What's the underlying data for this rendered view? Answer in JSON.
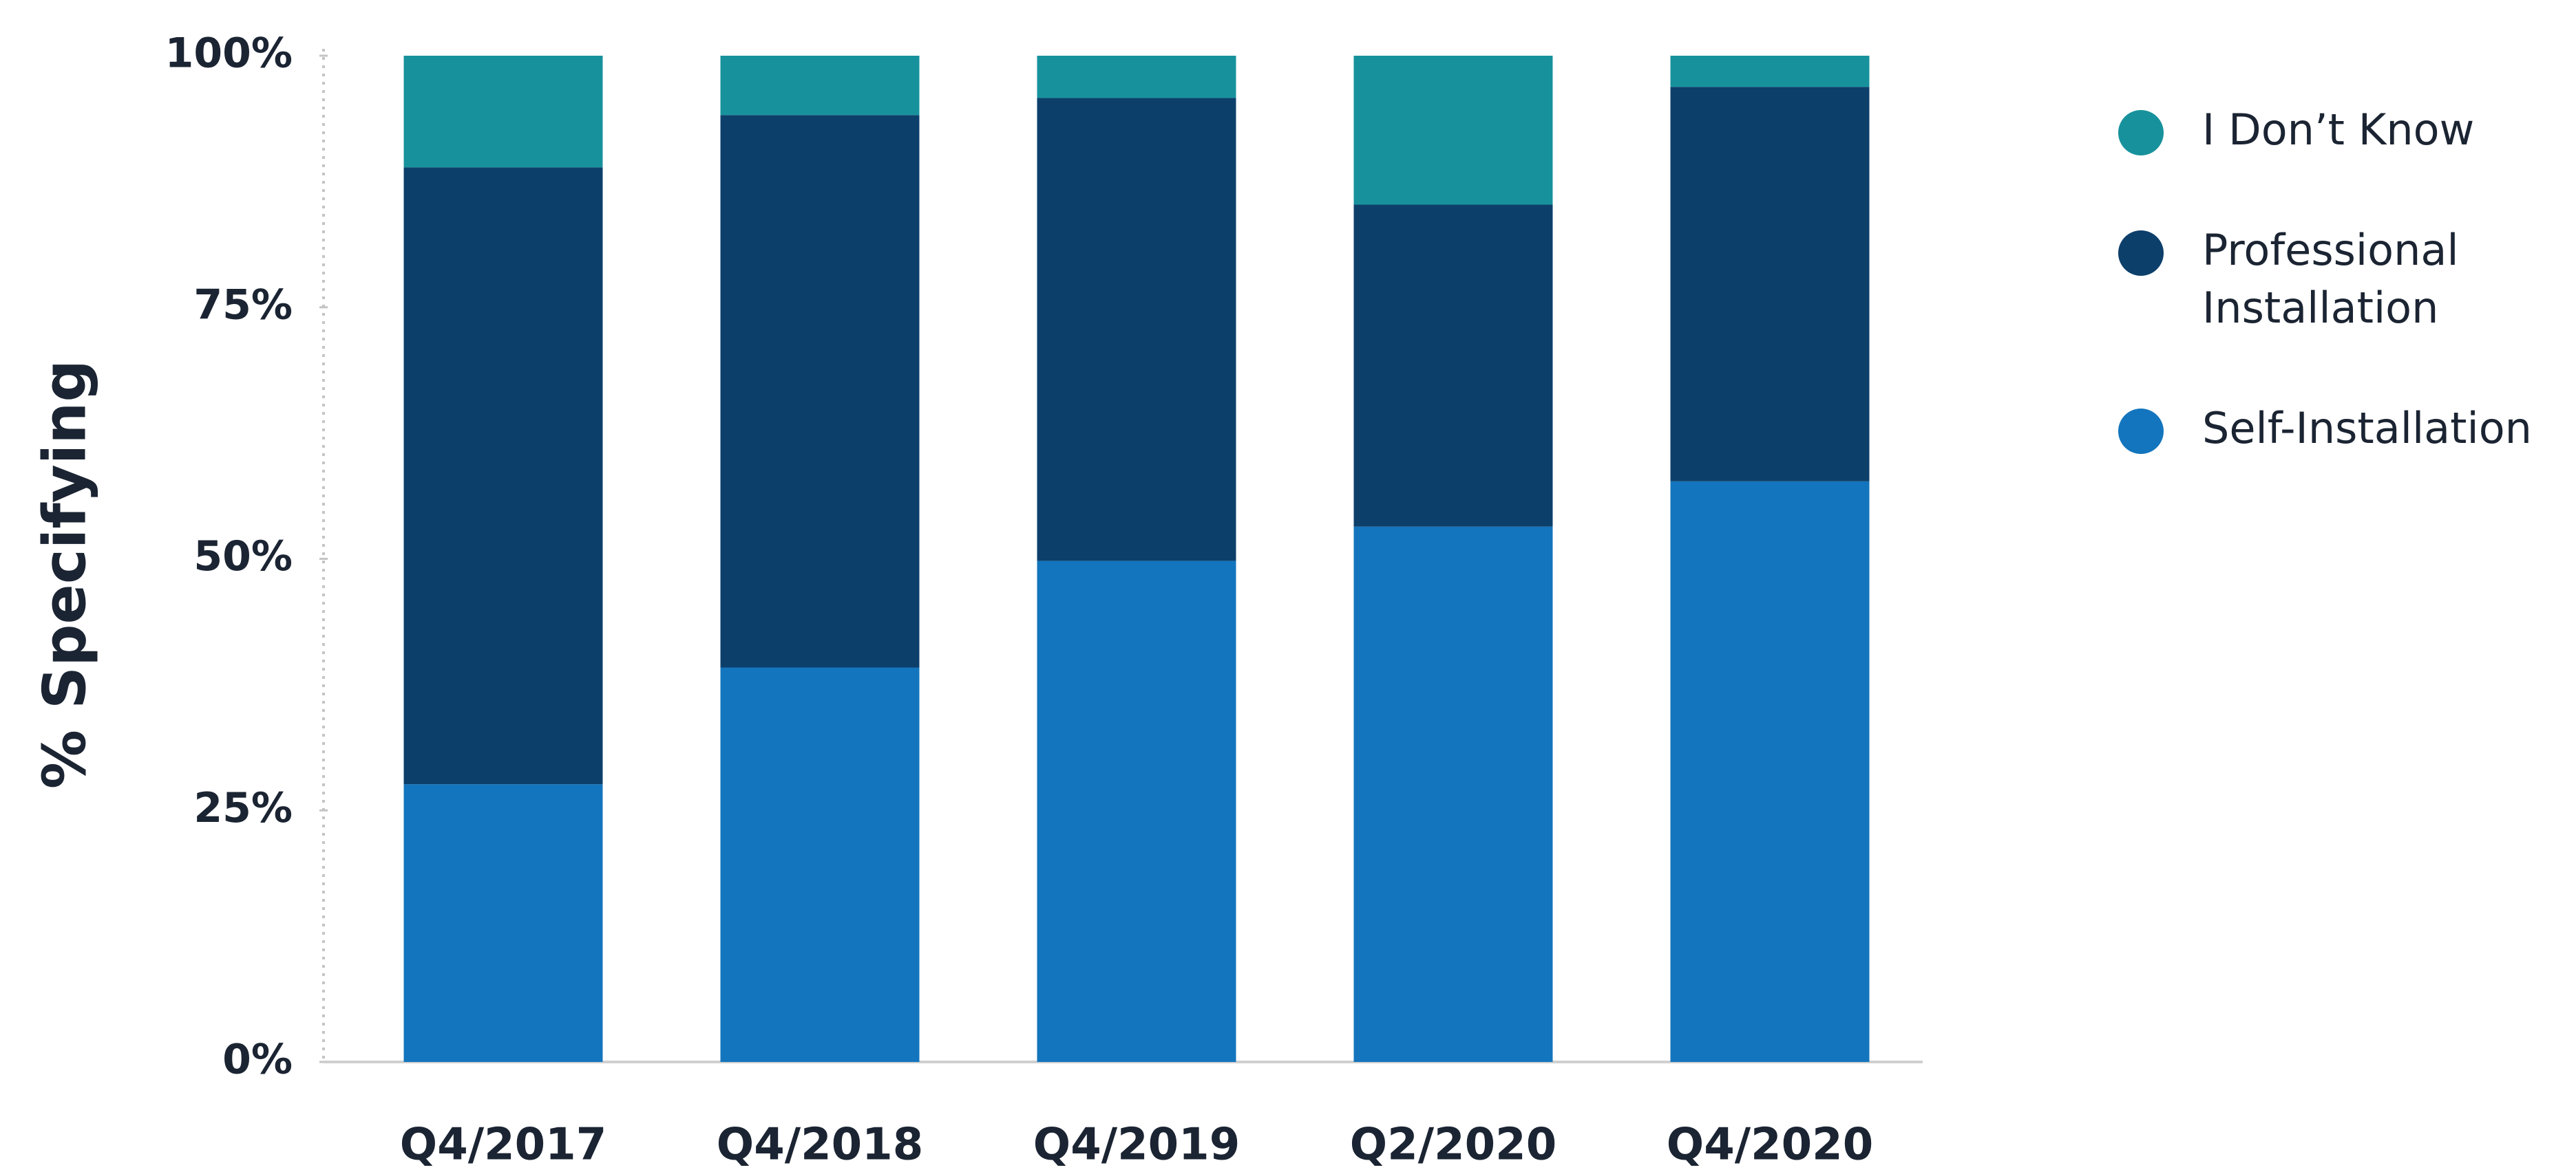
{
  "chart_data": {
    "type": "stacked-bar",
    "y_label": "% Specifying",
    "categories": [
      "Q4/2017",
      "Q4/2018",
      "Q4/2019",
      "Q2/2020",
      "Q4/2020"
    ],
    "series": [
      {
        "name": "Self-Installation",
        "color": "#1375bd",
        "values": [
          27.6,
          39.2,
          49.8,
          53.2,
          57.7
        ]
      },
      {
        "name": "Professional Installation",
        "color": "#0d3f6b",
        "values": [
          61.3,
          54.9,
          46.0,
          32.0,
          39.2
        ]
      },
      {
        "name": "I Don’t Know",
        "color": "#17929c",
        "values": [
          11.1,
          5.9,
          4.2,
          14.8,
          3.1
        ]
      }
    ],
    "ylim": [
      0,
      100
    ],
    "yticks": [
      {
        "value": 0,
        "label": "0%"
      },
      {
        "value": 25,
        "label": "25%"
      },
      {
        "value": 50,
        "label": "50%"
      },
      {
        "value": 75,
        "label": "75%"
      },
      {
        "value": 100,
        "label": "100%"
      }
    ],
    "legend": "right"
  }
}
